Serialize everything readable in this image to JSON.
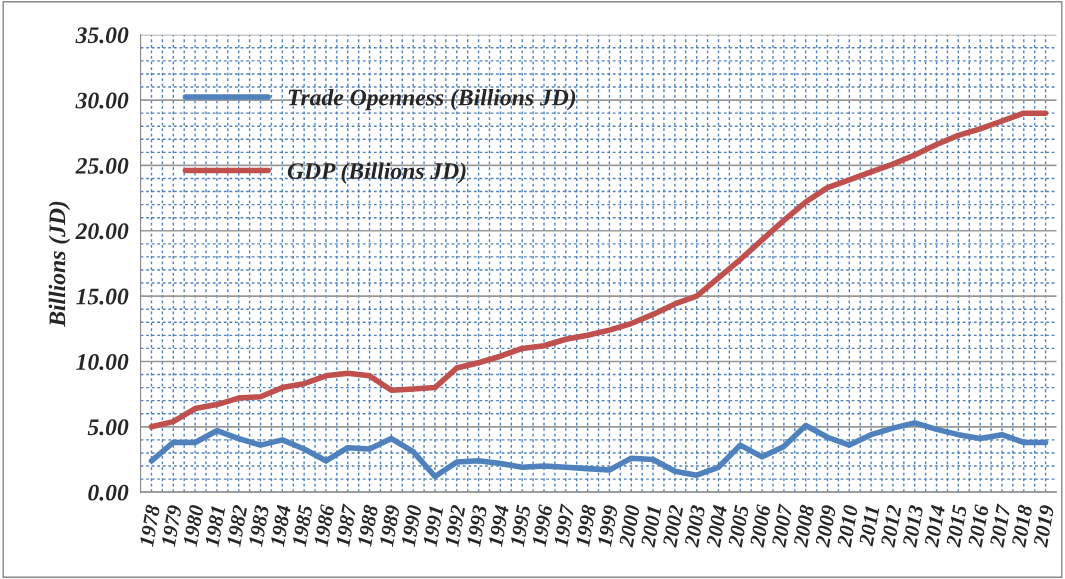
{
  "chart_data": {
    "type": "line",
    "ylabel": "Billions (JD)",
    "categories": [
      "1978",
      "1979",
      "1980",
      "1981",
      "1982",
      "1983",
      "1984",
      "1985",
      "1986",
      "1987",
      "1988",
      "1989",
      "1990",
      "1991",
      "1992",
      "1993",
      "1994",
      "1995",
      "1996",
      "1997",
      "1998",
      "1999",
      "2000",
      "2001",
      "2002",
      "2003",
      "2004",
      "2005",
      "2006",
      "2007",
      "2008",
      "2009",
      "2010",
      "2011",
      "2012",
      "2013",
      "2014",
      "2015",
      "2016",
      "2017",
      "2018",
      "2019"
    ],
    "series": [
      {
        "name": "Trade Openness (Billions JD)",
        "color": "#4f81bd",
        "values": [
          2.4,
          3.8,
          3.8,
          4.7,
          4.1,
          3.6,
          4.0,
          3.3,
          2.4,
          3.4,
          3.3,
          4.1,
          3.1,
          1.2,
          2.3,
          2.4,
          2.2,
          1.9,
          2.0,
          1.9,
          1.8,
          1.7,
          2.6,
          2.5,
          1.6,
          1.3,
          1.9,
          3.6,
          2.7,
          3.5,
          5.1,
          4.2,
          3.6,
          4.4,
          4.9,
          5.3,
          4.8,
          4.4,
          4.1,
          4.4,
          3.8,
          3.8
        ]
      },
      {
        "name": "GDP (Billions JD)",
        "color": "#c0504d",
        "values": [
          5.0,
          5.4,
          6.4,
          6.7,
          7.2,
          7.3,
          8.0,
          8.3,
          8.9,
          9.1,
          8.9,
          7.8,
          7.9,
          8.0,
          9.5,
          9.9,
          10.4,
          11.0,
          11.2,
          11.7,
          12.0,
          12.4,
          12.9,
          13.6,
          14.4,
          15.0,
          16.4,
          17.8,
          19.3,
          20.8,
          22.2,
          23.3,
          23.9,
          24.5,
          25.1,
          25.8,
          26.6,
          27.3,
          27.8,
          28.4,
          29.0,
          29.0
        ]
      }
    ],
    "ylim": [
      0,
      35
    ],
    "yticks": [
      {
        "value": 0,
        "label": "0.00"
      },
      {
        "value": 5,
        "label": "5.00"
      },
      {
        "value": 10,
        "label": "10.00"
      },
      {
        "value": 15,
        "label": "15.00"
      },
      {
        "value": 20,
        "label": "20.00"
      },
      {
        "value": 25,
        "label": "25.00"
      },
      {
        "value": 30,
        "label": "30.00"
      },
      {
        "value": 35,
        "label": "35.00"
      }
    ],
    "grid": true,
    "legend": "top left",
    "marker": "none",
    "line_style": "solid"
  }
}
